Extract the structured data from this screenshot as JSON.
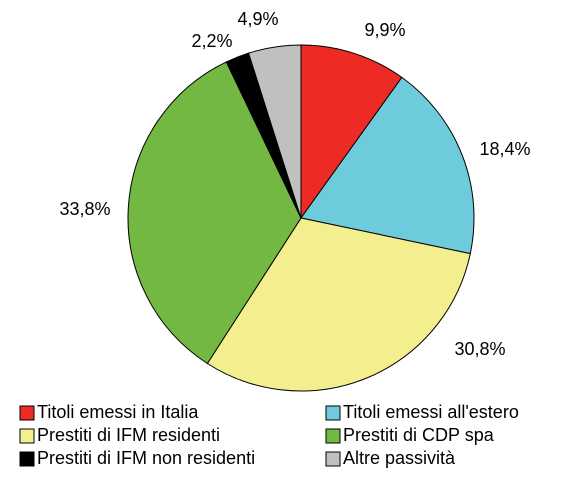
{
  "chart_data": {
    "type": "pie",
    "categories": [
      "Titoli emessi in Italia",
      "Titoli emessi all'estero",
      "Prestiti di IFM residenti",
      "Prestiti di CDP spa",
      "Prestiti di IFM non residenti",
      "Altre passività"
    ],
    "values": [
      9.9,
      18.4,
      30.8,
      33.8,
      2.2,
      4.9
    ],
    "value_labels": [
      "9,9%",
      "18,4%",
      "30,8%",
      "33,8%",
      "2,2%",
      "4,9%"
    ],
    "colors": [
      "#ee2a24",
      "#6ecbdb",
      "#f3ef8f",
      "#72b843",
      "#000000",
      "#c0c0c0"
    ]
  }
}
